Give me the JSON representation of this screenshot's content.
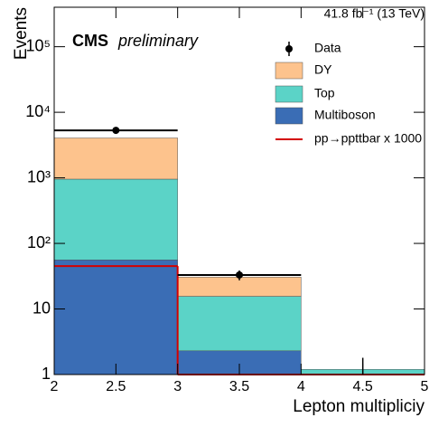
{
  "chart_data": {
    "type": "stacked_histogram",
    "lumi": "41.8 fb⁻¹ (13 TeV)",
    "experiment": "CMS",
    "status": "preliminary",
    "xlabel": "Lepton multipliciy",
    "ylabel": "Events",
    "bins": [
      2,
      3,
      4,
      5
    ],
    "log_y": true,
    "xlim": [
      2,
      5
    ],
    "ylim": [
      1,
      400000
    ],
    "xticks": [
      2,
      2.5,
      3,
      3.5,
      4,
      4.5,
      5
    ],
    "yticks": [
      1,
      10,
      {
        "value": 100,
        "label": "10²"
      },
      {
        "value": 1000,
        "label": "10³"
      },
      {
        "value": 10000,
        "label": "10⁴"
      },
      {
        "value": 100000,
        "label": "10⁵"
      }
    ],
    "series": [
      {
        "name": "Multiboson",
        "color": "#3a6db5",
        "values": [
          56,
          2.3,
          0
        ]
      },
      {
        "name": "Top",
        "color": "#5bd3c7",
        "values": [
          900,
          13.3,
          1.2
        ]
      },
      {
        "name": "DY",
        "color": "#fdc38d",
        "values": [
          3100,
          15,
          0
        ]
      }
    ],
    "data": {
      "name": "Data",
      "values": [
        5300,
        33,
        0
      ],
      "errors": [
        73,
        5.7,
        1.8
      ]
    },
    "signal": {
      "name": "pp→ppttbar x 1000",
      "color": "#d40000",
      "values": [
        45,
        0,
        0
      ]
    }
  }
}
